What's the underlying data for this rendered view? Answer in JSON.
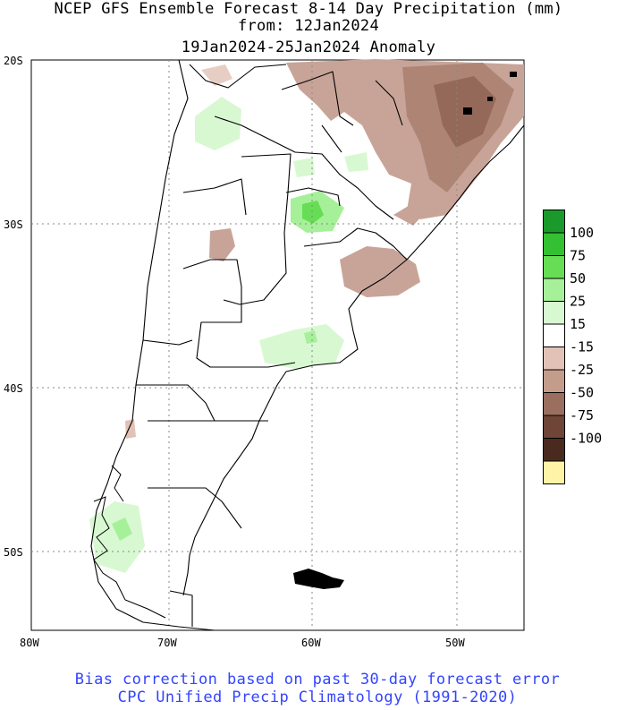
{
  "title": {
    "line1": "NCEP GFS Ensemble Forecast 8-14 Day Precipitation (mm)",
    "line2": "from: 12Jan2024",
    "line3": "19Jan2024-25Jan2024 Anomaly"
  },
  "footer": {
    "line1": "Bias correction based on past 30-day forecast error",
    "line2": "CPC Unified Precip Climatology (1991-2020)"
  },
  "axes": {
    "lat_labels": [
      "20S",
      "30S",
      "40S",
      "50S"
    ],
    "lon_labels": [
      "80W",
      "70W",
      "60W",
      "50W"
    ]
  },
  "legend": {
    "labels": [
      "100",
      "75",
      "50",
      "25",
      "15",
      "-15",
      "-25",
      "-50",
      "-75",
      "-100"
    ],
    "colors": [
      "#1a9a2a",
      "#33c033",
      "#66dd55",
      "#a6f09a",
      "#d8f8d2",
      "#ffffff",
      "#e2c2b6",
      "#c49c8c",
      "#9a6f5f",
      "#6e4536",
      "#4a2a1e",
      "#fff3a6"
    ]
  },
  "colors": {
    "land_outline": "#000000",
    "grid": "#888888",
    "footer_text": "#3344ff"
  }
}
